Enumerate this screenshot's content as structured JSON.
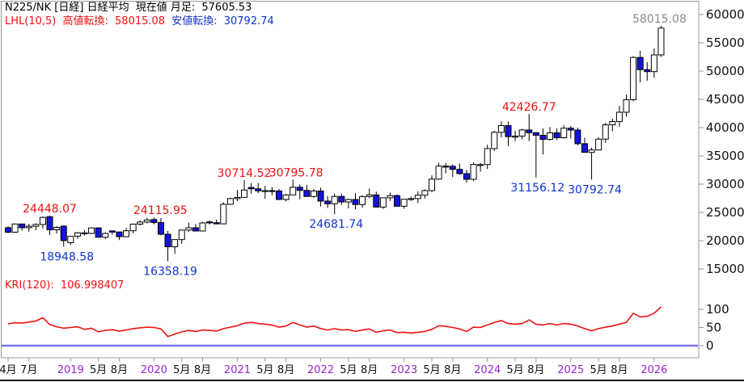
{
  "header": {
    "symbol": "N225/NK [日経] 日経平均",
    "current_label": "現在値 月足:",
    "current_value": "57605.53",
    "lhl_label": "LHL(10,5)",
    "high_turn_label": "高値転換:",
    "high_turn_value": "58015.08",
    "low_turn_label": "安値転換:",
    "low_turn_value": "30792.74"
  },
  "kri_header": {
    "label": "KRI(120):",
    "value": "106.998407"
  },
  "colors": {
    "up_candle": "#ffffff",
    "down_candle": "#1414dd",
    "candle_outline": "#000000",
    "kri_line": "#ee1111",
    "zero_line": "#7777e8",
    "axis": "#999999",
    "tick_text": "#111111",
    "year_text": "#9922cc",
    "anno_red": "#ee1111",
    "anno_blue": "#1133cc",
    "anno_gray": "#888888",
    "window_edge": "#000000"
  },
  "chart_data": {
    "type": "candlestick",
    "title": "N225/NK 日経平均 月足 (Nikkei 225 monthly)",
    "timeframe": "月足",
    "current_value": 57605.53,
    "y_axis_main": {
      "ticks": [
        60000,
        55000,
        50000,
        45000,
        40000,
        35000,
        30000,
        25000,
        20000,
        15000
      ],
      "range": [
        13000,
        61500
      ]
    },
    "y_axis_sub": {
      "ticks": [
        100,
        50,
        0
      ]
    },
    "months": [
      "2018-04",
      "2018-05",
      "2018-06",
      "2018-07",
      "2018-08",
      "2018-09",
      "2018-10",
      "2018-11",
      "2018-12",
      "2019-01",
      "2019-02",
      "2019-03",
      "2019-04",
      "2019-05",
      "2019-06",
      "2019-07",
      "2019-08",
      "2019-09",
      "2019-10",
      "2019-11",
      "2019-12",
      "2020-01",
      "2020-02",
      "2020-03",
      "2020-04",
      "2020-05",
      "2020-06",
      "2020-07",
      "2020-08",
      "2020-09",
      "2020-10",
      "2020-11",
      "2020-12",
      "2021-01",
      "2021-02",
      "2021-03",
      "2021-04",
      "2021-05",
      "2021-06",
      "2021-07",
      "2021-08",
      "2021-09",
      "2021-10",
      "2021-11",
      "2021-12",
      "2022-01",
      "2022-02",
      "2022-03",
      "2022-04",
      "2022-05",
      "2022-06",
      "2022-07",
      "2022-08",
      "2022-09",
      "2022-10",
      "2022-11",
      "2022-12",
      "2023-01",
      "2023-02",
      "2023-03",
      "2023-04",
      "2023-05",
      "2023-06",
      "2023-07",
      "2023-08",
      "2023-09",
      "2023-10",
      "2023-11",
      "2023-12",
      "2024-01",
      "2024-02",
      "2024-03",
      "2024-04",
      "2024-05",
      "2024-06",
      "2024-07",
      "2024-08",
      "2024-09",
      "2024-10",
      "2024-11",
      "2024-12",
      "2025-01",
      "2025-02",
      "2025-03",
      "2025-04",
      "2025-05",
      "2025-06",
      "2025-07",
      "2025-08",
      "2025-09",
      "2025-10",
      "2025-11",
      "2025-12",
      "2026-01",
      "2026-02"
    ],
    "ohlc": [
      [
        22300,
        22560,
        21300,
        21500
      ],
      [
        21500,
        23050,
        21400,
        22950
      ],
      [
        22950,
        23010,
        21785,
        22300
      ],
      [
        22300,
        22950,
        21550,
        22550
      ],
      [
        22550,
        23070,
        21850,
        22865
      ],
      [
        22865,
        24286,
        22172,
        24120
      ],
      [
        24245,
        24448.07,
        20972,
        21920
      ],
      [
        21920,
        22583,
        21244,
        22351
      ],
      [
        22574,
        22698,
        18948.58,
        20015
      ],
      [
        19655,
        20774,
        19240,
        20773
      ],
      [
        20797,
        21556,
        20315,
        21385
      ],
      [
        21385,
        21860,
        20910,
        21205
      ],
      [
        21290,
        22362,
        21175,
        22258
      ],
      [
        22258,
        22362,
        20750,
        20601
      ],
      [
        20600,
        21490,
        20290,
        21275
      ],
      [
        21730,
        21823,
        21045,
        21521
      ],
      [
        21540,
        21600,
        20110,
        20704
      ],
      [
        20704,
        22255,
        20610,
        21755
      ],
      [
        21755,
        23008,
        21276,
        22927
      ],
      [
        22927,
        23608,
        22705,
        23293
      ],
      [
        23293,
        24091,
        23045,
        23656
      ],
      [
        23738,
        24115.95,
        22892,
        23205
      ],
      [
        23205,
        23995,
        20915,
        21142
      ],
      [
        21142,
        21719,
        16358.19,
        18917
      ],
      [
        18917,
        20193,
        17645,
        20193
      ],
      [
        20193,
        21920,
        19448,
        21877
      ],
      [
        21877,
        23185,
        21530,
        22288
      ],
      [
        22288,
        22945,
        21710,
        21710
      ],
      [
        21710,
        23338,
        21700,
        23139
      ],
      [
        23320,
        23582,
        22880,
        23185
      ],
      [
        23185,
        23725,
        22950,
        22977
      ],
      [
        22977,
        26817,
        22950,
        26433
      ],
      [
        26433,
        27602,
        26328,
        27444
      ],
      [
        27444,
        28979,
        27000,
        27663
      ],
      [
        27663,
        30714.52,
        27660,
        28966
      ],
      [
        29408,
        30216,
        28308,
        29178
      ],
      [
        29178,
        30208,
        28420,
        28812
      ],
      [
        28812,
        29685,
        27385,
        28860
      ],
      [
        28860,
        29480,
        28045,
        28791
      ],
      [
        28791,
        29137,
        27283,
        27283
      ],
      [
        27283,
        28282,
        26954,
        28089
      ],
      [
        28089,
        30795.78,
        28060,
        29452
      ],
      [
        29452,
        29960,
        27293,
        28892
      ],
      [
        28892,
        29880,
        27820,
        27821
      ],
      [
        27821,
        29120,
        27600,
        28791
      ],
      [
        28791,
        29388,
        26044,
        27001
      ],
      [
        27001,
        27880,
        25775,
        26526
      ],
      [
        26526,
        28338,
        24681.74,
        27821
      ],
      [
        27821,
        28279,
        26304,
        26847
      ],
      [
        26847,
        27440,
        25688,
        27279
      ],
      [
        27279,
        28389,
        25520,
        26393
      ],
      [
        26393,
        28032,
        25840,
        27801
      ],
      [
        27801,
        29222,
        27530,
        28091
      ],
      [
        28091,
        28658,
        25937,
        25937
      ],
      [
        25937,
        27587,
        25621,
        27587
      ],
      [
        27587,
        28502,
        27032,
        27968
      ],
      [
        27968,
        28195,
        25953,
        26094
      ],
      [
        26094,
        27346,
        25661,
        27327
      ],
      [
        27327,
        27821,
        27046,
        27445
      ],
      [
        27445,
        28734,
        26632,
        28041
      ],
      [
        28041,
        29074,
        27427,
        28856
      ],
      [
        28856,
        31560,
        28616,
        30887
      ],
      [
        30887,
        33772,
        30785,
        33189
      ],
      [
        33189,
        33762,
        31934,
        33172
      ],
      [
        33172,
        33488,
        31275,
        32619
      ],
      [
        32619,
        33634,
        31674,
        31857
      ],
      [
        31857,
        32533,
        30268,
        30858
      ],
      [
        30858,
        33861,
        30538,
        33486
      ],
      [
        33318,
        33755,
        32205,
        33464
      ],
      [
        33464,
        36984,
        32693,
        36286
      ],
      [
        36286,
        39426,
        35854,
        39166
      ],
      [
        39166,
        41087,
        38271,
        40369
      ],
      [
        40369,
        41087,
        36733,
        38405
      ],
      [
        38405,
        39437,
        37617,
        38487
      ],
      [
        38487,
        39788,
        37950,
        39583
      ],
      [
        39583,
        42426.77,
        37611,
        39101
      ],
      [
        39101,
        39188,
        31156.12,
        38647
      ],
      [
        38647,
        39829,
        35247,
        37919
      ],
      [
        37919,
        40087,
        37735,
        39081
      ],
      [
        39081,
        39884,
        37800,
        38208
      ],
      [
        38208,
        40398,
        38055,
        39894
      ],
      [
        39894,
        40288,
        38055,
        39572
      ],
      [
        39572,
        40000,
        36840,
        37155
      ],
      [
        37155,
        38220,
        35617,
        35617
      ],
      [
        35617,
        36452,
        30792.74,
        36045
      ],
      [
        36045,
        38294,
        35985,
        37965
      ],
      [
        37965,
        40852,
        37315,
        40487
      ],
      [
        40487,
        41560,
        39337,
        41069
      ],
      [
        41069,
        43876,
        40183,
        42718
      ],
      [
        42718,
        45852,
        41918,
        44932
      ],
      [
        44932,
        52636,
        44670,
        52411
      ],
      [
        52411,
        53576,
        48000,
        50253
      ],
      [
        50253,
        51570,
        48290,
        49900
      ],
      [
        49900,
        54000,
        48800,
        52857
      ],
      [
        52857,
        58015.08,
        52500,
        57605.53
      ]
    ],
    "kri": {
      "name": "KRI(120)",
      "current": 106.998407,
      "values": [
        60,
        63,
        62,
        65,
        68,
        77,
        58,
        52,
        48,
        50,
        52,
        45,
        48,
        38,
        42,
        44,
        40,
        43,
        47,
        49,
        51,
        50,
        46,
        25,
        32,
        38,
        42,
        39,
        43,
        42,
        40,
        47,
        51,
        55,
        62,
        64,
        61,
        59,
        57,
        51,
        54,
        64,
        57,
        51,
        54,
        47,
        43,
        47,
        43,
        44,
        39,
        43,
        46,
        37,
        41,
        43,
        36,
        37,
        35,
        37,
        39,
        45,
        55,
        53,
        50,
        46,
        39,
        51,
        50,
        57,
        64,
        69,
        61,
        59,
        61,
        71,
        59,
        57,
        61,
        57,
        61,
        59,
        54,
        47,
        41,
        47,
        51,
        54,
        59,
        64,
        89,
        79,
        81,
        89,
        106.998407
      ]
    },
    "x_ticks": [
      {
        "label": "4月",
        "i": 0,
        "type": "month"
      },
      {
        "label": "7月",
        "i": 3,
        "type": "month"
      },
      {
        "label": "2019",
        "i": 9,
        "type": "year"
      },
      {
        "label": "5月",
        "i": 13,
        "type": "month"
      },
      {
        "label": "8月",
        "i": 16,
        "type": "month"
      },
      {
        "label": "2020",
        "i": 21,
        "type": "year"
      },
      {
        "label": "5月",
        "i": 25,
        "type": "month"
      },
      {
        "label": "8月",
        "i": 28,
        "type": "month"
      },
      {
        "label": "2021",
        "i": 33,
        "type": "year"
      },
      {
        "label": "5月",
        "i": 37,
        "type": "month"
      },
      {
        "label": "8月",
        "i": 40,
        "type": "month"
      },
      {
        "label": "2022",
        "i": 45,
        "type": "year"
      },
      {
        "label": "5月",
        "i": 49,
        "type": "month"
      },
      {
        "label": "8月",
        "i": 52,
        "type": "month"
      },
      {
        "label": "2023",
        "i": 57,
        "type": "year"
      },
      {
        "label": "5月",
        "i": 61,
        "type": "month"
      },
      {
        "label": "8月",
        "i": 64,
        "type": "month"
      },
      {
        "label": "2024",
        "i": 69,
        "type": "year"
      },
      {
        "label": "5月",
        "i": 73,
        "type": "month"
      },
      {
        "label": "8月",
        "i": 76,
        "type": "month"
      },
      {
        "label": "2025",
        "i": 81,
        "type": "year"
      },
      {
        "label": "5月",
        "i": 85,
        "type": "month"
      },
      {
        "label": "8月",
        "i": 88,
        "type": "month"
      },
      {
        "label": "2026",
        "i": 93,
        "type": "year"
      }
    ],
    "annotations": [
      {
        "text": "24448.07",
        "i": 6,
        "price": 24448.07,
        "pos": "above",
        "color": "red"
      },
      {
        "text": "18948.58",
        "i": 8,
        "price": 18948.58,
        "pos": "below",
        "color": "blue",
        "dx": 4
      },
      {
        "text": "24115.95",
        "i": 21,
        "price": 24115.95,
        "pos": "above",
        "color": "red",
        "dx": 8
      },
      {
        "text": "16358.19",
        "i": 23,
        "price": 16358.19,
        "pos": "below",
        "color": "blue",
        "dx": 3
      },
      {
        "text": "30714.52",
        "i": 34,
        "price": 30714.52,
        "pos": "above",
        "color": "red"
      },
      {
        "text": "30795.78",
        "i": 41,
        "price": 30795.78,
        "pos": "above",
        "color": "red",
        "dx": 4
      },
      {
        "text": "24681.74",
        "i": 47,
        "price": 24681.74,
        "pos": "below",
        "color": "blue",
        "dx": 2
      },
      {
        "text": "42426.77",
        "i": 75,
        "price": 42426.77,
        "pos": "above",
        "color": "red"
      },
      {
        "text": "31156.12",
        "i": 76,
        "price": 31156.12,
        "pos": "below",
        "color": "blue",
        "dx": 2
      },
      {
        "text": "30792.74",
        "i": 84,
        "price": 30792.74,
        "pos": "below",
        "color": "blue",
        "dx": 4
      },
      {
        "text": "58015.08",
        "i": 94,
        "price": 58015.08,
        "pos": "above",
        "color": "gray",
        "dx": -2
      }
    ]
  }
}
